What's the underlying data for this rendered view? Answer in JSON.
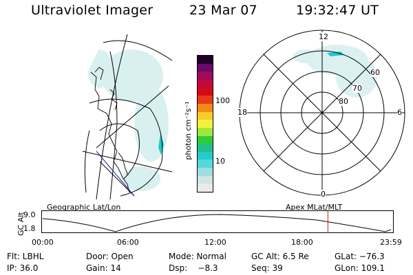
{
  "header": {
    "title": "Ultraviolet Imager",
    "date": "23 Mar 07",
    "time": "19:32:47 UT"
  },
  "colorbar": {
    "unit_label": "photon cm⁻²s⁻¹",
    "ticks": [
      "100",
      "10"
    ],
    "colors": [
      "#e8ece8",
      "#cfe4e4",
      "#9fdede",
      "#55d8d8",
      "#22cccc",
      "#22c08a",
      "#2fcc3a",
      "#9fe83a",
      "#f2f23a",
      "#f5cc2a",
      "#f08a1a",
      "#e83a1a",
      "#d40a14",
      "#c00a3a",
      "#a00a5a",
      "#6a0a6a",
      "#20002a"
    ]
  },
  "left_map": {
    "label": "Geographic Lat/Lon"
  },
  "polar": {
    "label": "Apex MLat/MLT",
    "mlt_labels": {
      "top": "12",
      "bottom": "0",
      "left": "18",
      "right": "6"
    },
    "lat_labels": [
      "60",
      "70",
      "80"
    ]
  },
  "altitude_plot": {
    "ylabel": "GC Alt",
    "yticks": [
      "9.0",
      "1.8"
    ],
    "xticks": [
      "00:00",
      "06:00",
      "12:00",
      "18:00",
      "23:59"
    ],
    "marker_time": "19:32",
    "cursor_color": "#d01818"
  },
  "info": {
    "flt": "Flt: LBHL",
    "door": "Door: Open",
    "mode": "Mode: Normal",
    "gc_alt": "GC Alt: 6.5 Re",
    "glat": "GLat: −76.3",
    "ip": "IP: 36.0",
    "gain": "Gain: 14",
    "dsp": "Dsp:    −8.3",
    "seq": "Seq: 39",
    "glon": "GLon: 109.1"
  }
}
